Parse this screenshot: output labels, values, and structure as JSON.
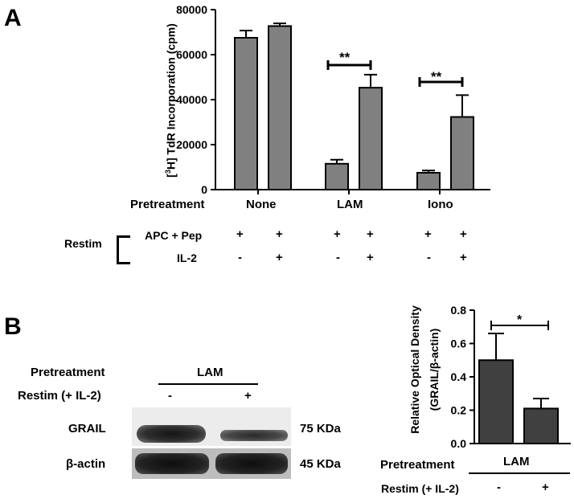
{
  "panelA": {
    "letter": "A",
    "pretreatment_label": "Pretreatment",
    "restim_label": "Restim",
    "apc_label": "APC + Pep",
    "il2_label": "IL-2",
    "groups": [
      "None",
      "LAM",
      "Iono"
    ],
    "apc_signs": [
      "+",
      "+",
      "+",
      "+",
      "+",
      "+"
    ],
    "il2_signs": [
      "-",
      "+",
      "-",
      "+",
      "-",
      "+"
    ],
    "sig": [
      "**",
      "**"
    ]
  },
  "panelB": {
    "letter": "B",
    "pretreatment_label": "Pretreatment",
    "restim_label": "Restim (+ IL-2)",
    "lam_label": "LAM",
    "lane_signs": [
      "-",
      "+"
    ],
    "grail_label": "GRAIL",
    "actin_label": "β-actin",
    "grail_kda": "75 KDa",
    "actin_kda": "45 KDa",
    "bar_pretreatment_label": "Pretreatment",
    "bar_lam_label": "LAM",
    "bar_restim_label": "Restim (+ IL-2)",
    "bar_signs": [
      "-",
      "+"
    ],
    "sig": "*"
  },
  "chart_data": [
    {
      "type": "bar",
      "ylabel": "[3H] TdR Incorporation (cpm)",
      "ylim": [
        0,
        80000
      ],
      "yticks": [
        "0",
        "20000",
        "40000",
        "60000",
        "80000"
      ],
      "categories": [
        "None -",
        "None +",
        "LAM -",
        "LAM +",
        "Iono -",
        "Iono +"
      ],
      "values": [
        67500,
        72700,
        11500,
        45300,
        7500,
        32300
      ],
      "errors": [
        3200,
        1200,
        1800,
        5800,
        1000,
        9700
      ],
      "color": "#808080"
    },
    {
      "type": "bar",
      "ylabel": "Relative Optical Density (GRAIL/β-actin)",
      "ylim": [
        0,
        0.8
      ],
      "yticks": [
        "0.0",
        "0.2",
        "0.4",
        "0.6",
        "0.8"
      ],
      "categories": [
        "-",
        "+"
      ],
      "values": [
        0.5,
        0.21
      ],
      "errors": [
        0.16,
        0.06
      ],
      "color": "#404040"
    }
  ]
}
